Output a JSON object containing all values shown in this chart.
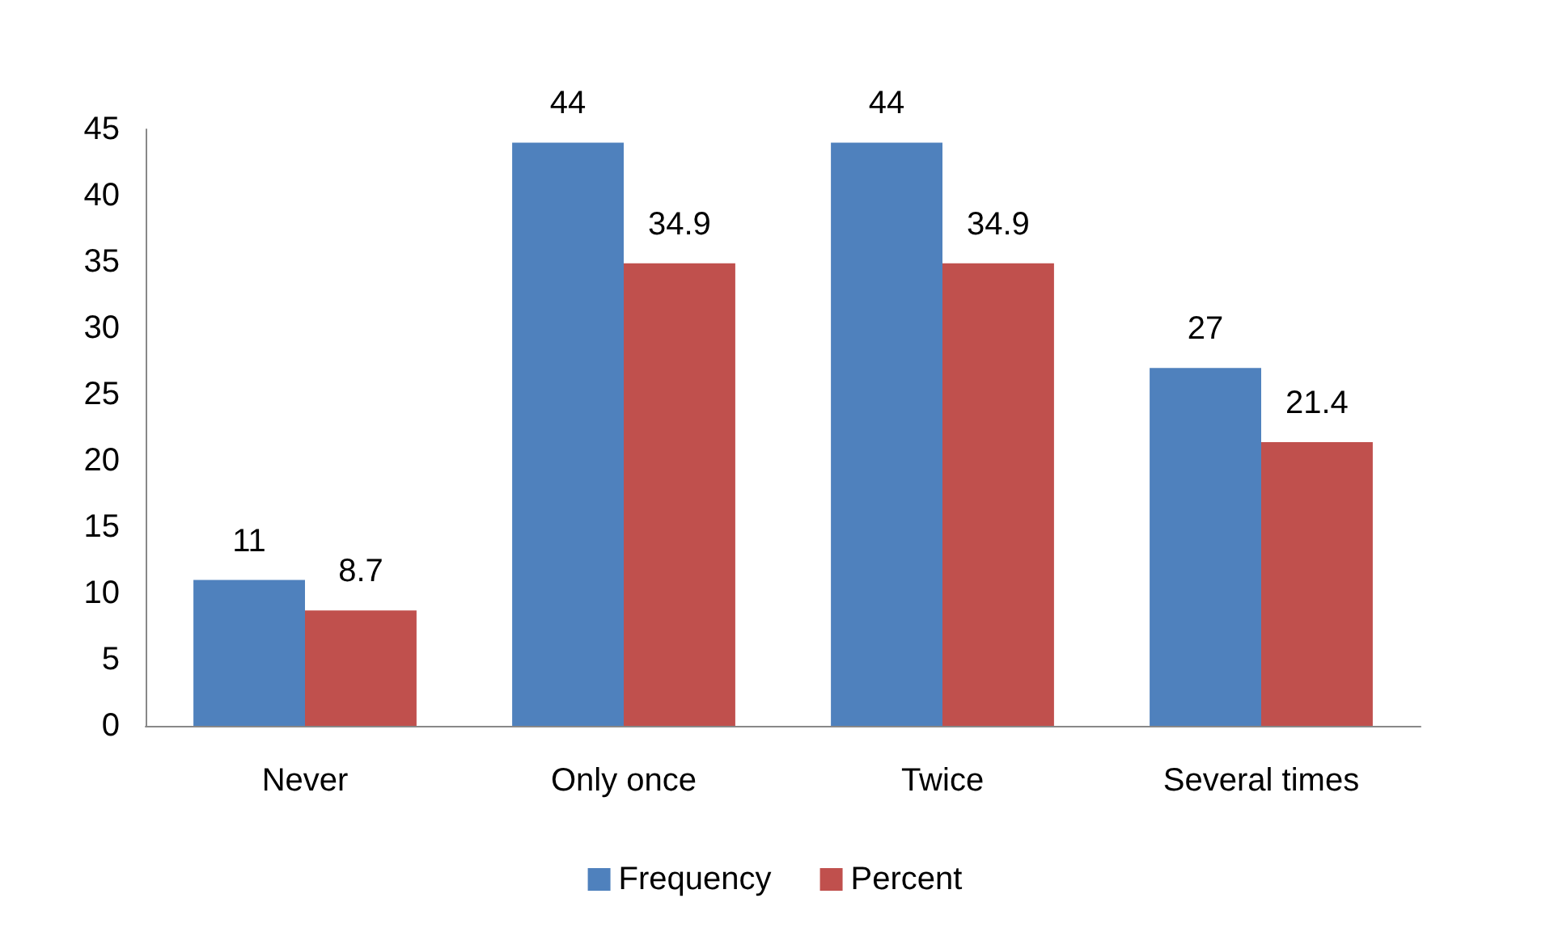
{
  "chart_data": {
    "type": "bar",
    "categories": [
      "Never",
      "Only once",
      "Twice",
      "Several times"
    ],
    "series": [
      {
        "name": "Frequency",
        "color": "#4f81bd",
        "values": [
          11,
          44,
          44,
          27
        ]
      },
      {
        "name": "Percent",
        "color": "#c0504d",
        "values": [
          8.7,
          34.9,
          34.9,
          21.4
        ]
      }
    ],
    "ylim": [
      0,
      45
    ],
    "yticks": [
      0,
      5,
      10,
      15,
      20,
      25,
      30,
      35,
      40,
      45
    ],
    "grid": false,
    "legend": "bottom",
    "data_labels": true
  }
}
